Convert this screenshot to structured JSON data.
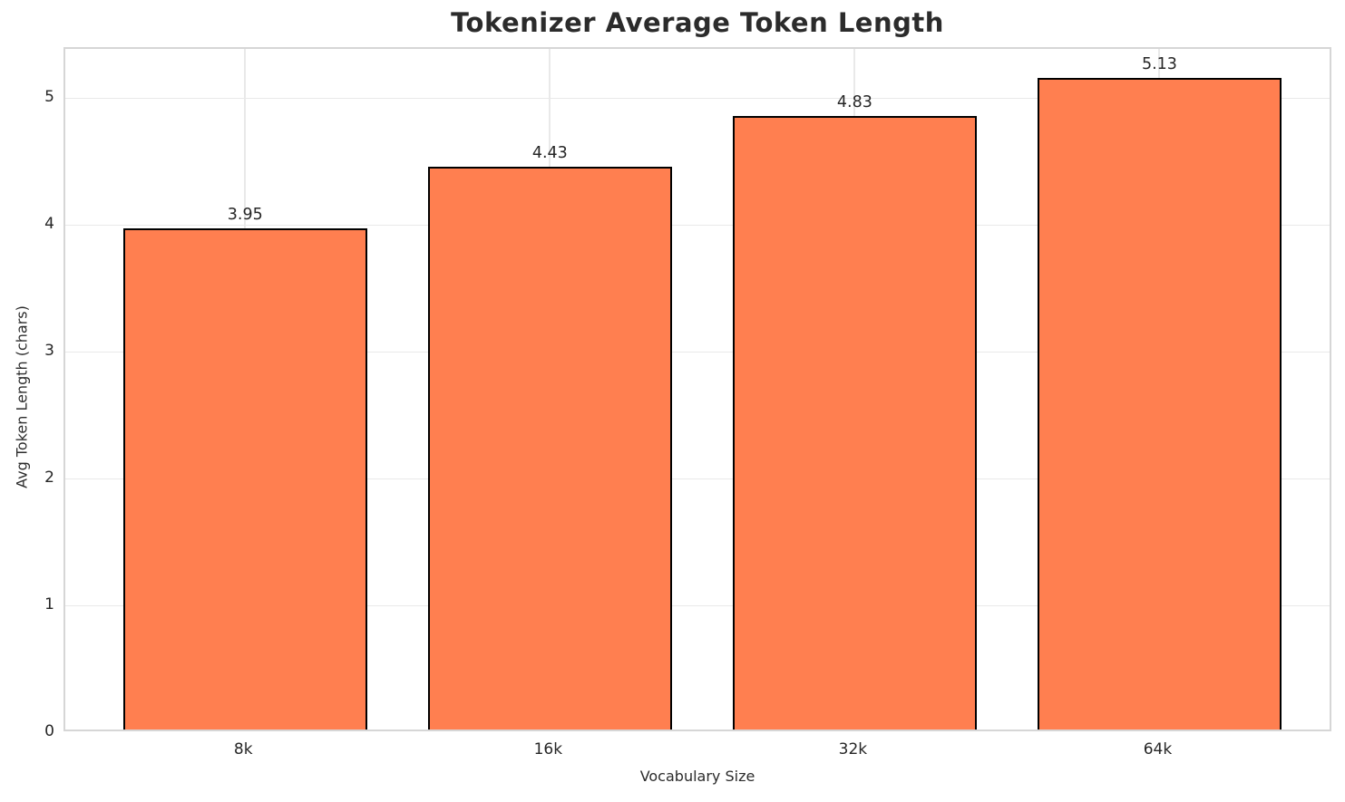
{
  "chart_data": {
    "type": "bar",
    "title": "Tokenizer Average Token Length",
    "xlabel": "Vocabulary Size",
    "ylabel": "Avg Token Length (chars)",
    "categories": [
      "8k",
      "16k",
      "32k",
      "64k"
    ],
    "values": [
      3.95,
      4.43,
      4.83,
      5.13
    ],
    "value_labels": [
      "3.95",
      "4.43",
      "4.83",
      "5.13"
    ],
    "yticks": [
      0,
      1,
      2,
      3,
      4,
      5
    ],
    "ylim": [
      0,
      5.39
    ],
    "grid": "both",
    "legend": "none",
    "bar_color": "#FF7F50",
    "bar_edge_color": "#000000",
    "grid_color": "#e9e9e9",
    "spine_color": "#d6d6d6",
    "text_color": "#262626",
    "background_color": "#ffffff"
  }
}
